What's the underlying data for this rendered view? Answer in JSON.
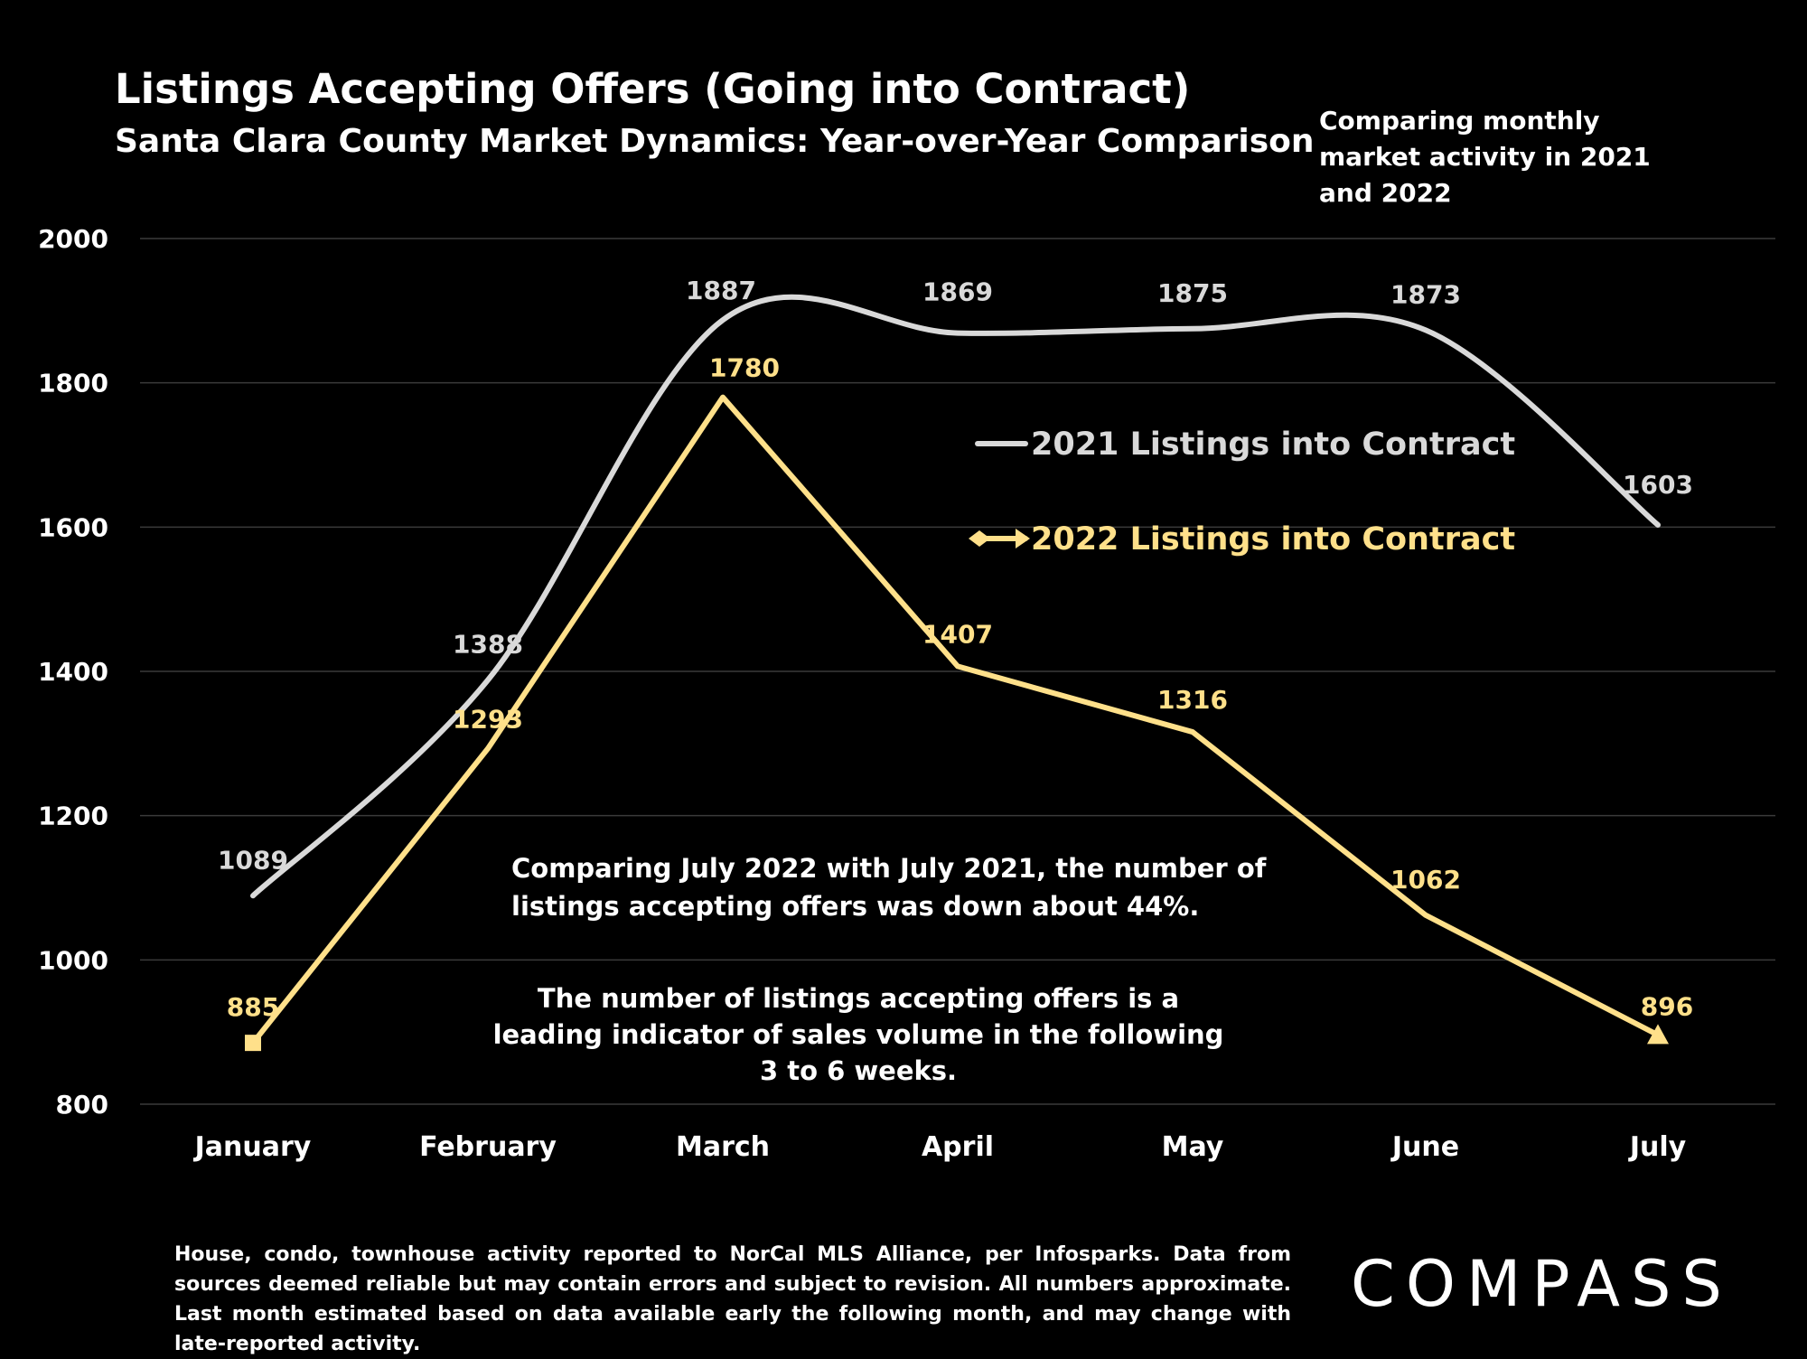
{
  "header": {
    "title": "Listings Accepting Offers (Going into Contract)",
    "subtitle": "Santa Clara County Market Dynamics: Year-over-Year Comparison",
    "note": "Comparing monthly market activity in 2021 and 2022"
  },
  "annotations": {
    "comparison": "Comparing July 2022 with July 2021, the number of listings accepting offers was down about 44%.",
    "indicator": "The number of listings accepting offers is a leading indicator of sales volume in the following 3 to 6 weeks."
  },
  "footer": {
    "text": "House, condo, townhouse activity reported to NorCal MLS Alliance, per Infosparks. Data from sources deemed reliable but may contain errors and subject to revision. All numbers approximate. Last month estimated based on data available early the following month, and may change with late-reported activity.",
    "logo": "COMPASS"
  },
  "colors": {
    "background": "#000000",
    "series_2021": "#d9d9d9",
    "series_2022": "#ffe08a",
    "grid": "#3a3a3a"
  },
  "chart_data": {
    "type": "line",
    "categories": [
      "January",
      "February",
      "March",
      "April",
      "May",
      "June",
      "July"
    ],
    "series": [
      {
        "name": "2021 Listings into Contract",
        "values": [
          1089,
          1388,
          1887,
          1869,
          1875,
          1873,
          1603
        ],
        "color": "#d9d9d9",
        "smooth": true
      },
      {
        "name": "2022 Listings into Contract",
        "values": [
          885,
          1293,
          1780,
          1407,
          1316,
          1062,
          896
        ],
        "color": "#ffe08a",
        "smooth": false
      }
    ],
    "ylim": [
      800,
      2000
    ],
    "yticks": [
      800,
      1000,
      1200,
      1400,
      1600,
      1800,
      2000
    ],
    "grid": true,
    "legend": "center-right"
  }
}
